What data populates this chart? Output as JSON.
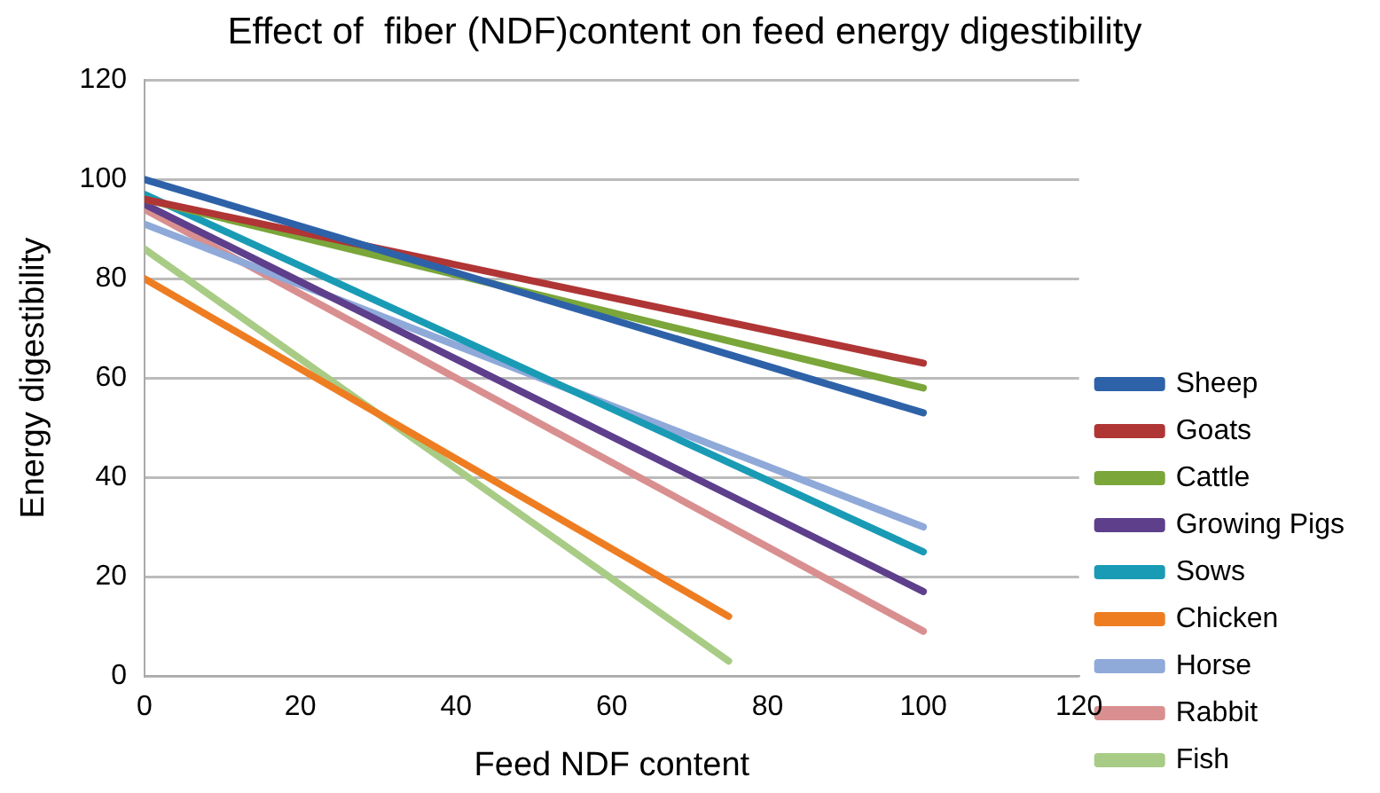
{
  "chart_data": {
    "type": "line",
    "title": "Effect of  fiber (NDF)content on feed energy digestibility",
    "xlabel": "Feed NDF content",
    "ylabel": "Energy digestibility",
    "xlim": [
      0,
      120
    ],
    "xticks": [
      0,
      20,
      40,
      60,
      80,
      100,
      120
    ],
    "ylim": [
      0,
      120
    ],
    "yticks": [
      0,
      20,
      40,
      60,
      80,
      100,
      120
    ],
    "grid": "y",
    "legend": "right",
    "marker": "none",
    "series": [
      {
        "name": "Sheep",
        "color": "#2e62a8",
        "x": [
          0,
          100
        ],
        "values": [
          100,
          53
        ]
      },
      {
        "name": "Goats",
        "color": "#b03535",
        "x": [
          0,
          100
        ],
        "values": [
          96,
          63
        ]
      },
      {
        "name": "Cattle",
        "color": "#7aa63a",
        "x": [
          0,
          100
        ],
        "values": [
          96,
          58
        ]
      },
      {
        "name": "Growing Pigs",
        "color": "#5e3f8c",
        "x": [
          0,
          100
        ],
        "values": [
          95,
          17
        ]
      },
      {
        "name": "Sows",
        "color": "#1a9bb5",
        "x": [
          0,
          100
        ],
        "values": [
          97,
          25
        ]
      },
      {
        "name": "Chicken",
        "color": "#ee7d22",
        "x": [
          0,
          75
        ],
        "values": [
          80,
          12
        ]
      },
      {
        "name": "Horse",
        "color": "#8fa9d9",
        "x": [
          0,
          100
        ],
        "values": [
          91,
          30
        ]
      },
      {
        "name": "Rabbit",
        "color": "#d98f8f",
        "x": [
          0,
          100
        ],
        "values": [
          94,
          9
        ]
      },
      {
        "name": "Fish",
        "color": "#a8cc85",
        "x": [
          0,
          75
        ],
        "values": [
          86,
          3
        ]
      }
    ]
  }
}
